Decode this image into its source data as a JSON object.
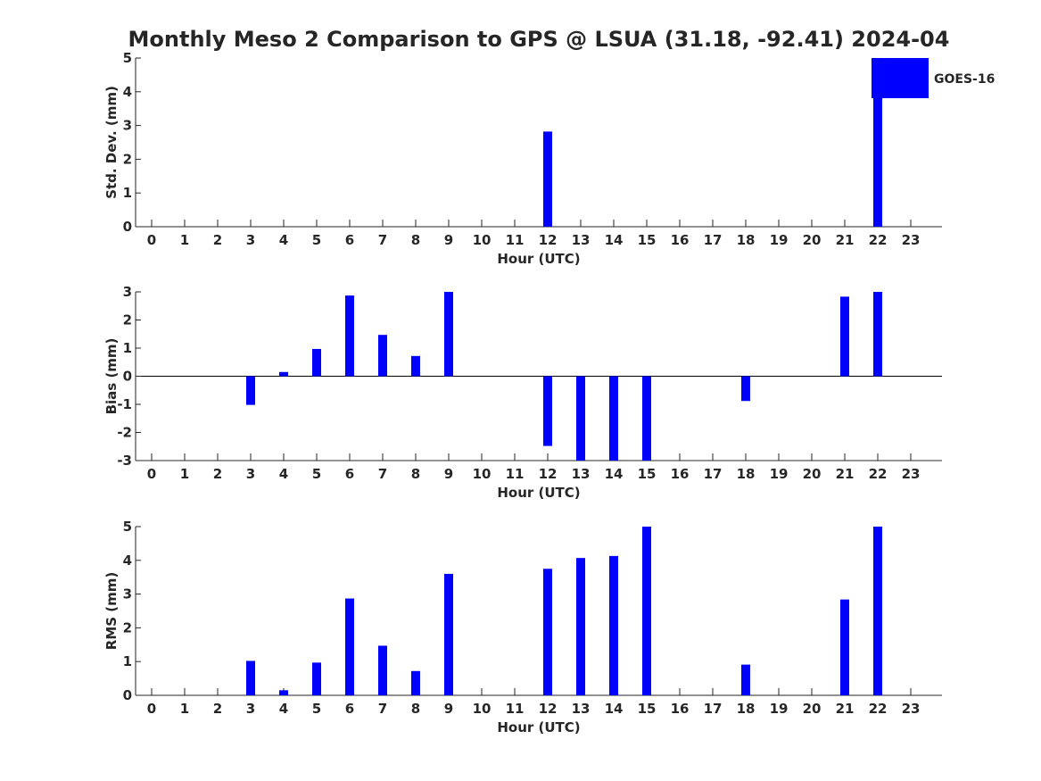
{
  "title": "Monthly Meso 2 Comparison to GPS @ LSUA (31.18, -92.41) 2024-04",
  "colors": {
    "bar": "#0000ff",
    "axis": "#262626",
    "background": "#ffffff"
  },
  "legend": {
    "label": "GOES-16",
    "position": "top-right"
  },
  "chart_data": [
    {
      "type": "bar",
      "xlabel": "Hour (UTC)",
      "ylabel": "Std. Dev. (mm)",
      "ylim": [
        0,
        5
      ],
      "yticks": [
        "0",
        "1",
        "2",
        "3",
        "4",
        "5"
      ],
      "categories": [
        "0",
        "1",
        "2",
        "3",
        "4",
        "5",
        "6",
        "7",
        "8",
        "9",
        "10",
        "11",
        "12",
        "13",
        "14",
        "15",
        "16",
        "17",
        "18",
        "19",
        "20",
        "21",
        "22",
        "23"
      ],
      "values": [
        null,
        null,
        null,
        null,
        null,
        null,
        null,
        null,
        null,
        null,
        null,
        null,
        2.82,
        null,
        null,
        null,
        null,
        null,
        null,
        null,
        null,
        null,
        5.0,
        null
      ]
    },
    {
      "type": "bar",
      "xlabel": "Hour (UTC)",
      "ylabel": "Bias (mm)",
      "ylim": [
        -3,
        3
      ],
      "yticks": [
        "-3",
        "-2",
        "-1",
        "0",
        "1",
        "2",
        "3"
      ],
      "categories": [
        "0",
        "1",
        "2",
        "3",
        "4",
        "5",
        "6",
        "7",
        "8",
        "9",
        "10",
        "11",
        "12",
        "13",
        "14",
        "15",
        "16",
        "17",
        "18",
        "19",
        "20",
        "21",
        "22",
        "23"
      ],
      "values": [
        null,
        null,
        null,
        -1.02,
        0.15,
        0.97,
        2.87,
        1.47,
        0.72,
        3.0,
        null,
        null,
        -2.48,
        -3.0,
        -3.0,
        -3.0,
        null,
        null,
        -0.88,
        null,
        null,
        2.83,
        3.0,
        null
      ]
    },
    {
      "type": "bar",
      "xlabel": "Hour (UTC)",
      "ylabel": "RMS (mm)",
      "ylim": [
        0,
        5
      ],
      "yticks": [
        "0",
        "1",
        "2",
        "3",
        "4",
        "5"
      ],
      "categories": [
        "0",
        "1",
        "2",
        "3",
        "4",
        "5",
        "6",
        "7",
        "8",
        "9",
        "10",
        "11",
        "12",
        "13",
        "14",
        "15",
        "16",
        "17",
        "18",
        "19",
        "20",
        "21",
        "22",
        "23"
      ],
      "values": [
        null,
        null,
        null,
        1.02,
        0.15,
        0.97,
        2.87,
        1.47,
        0.72,
        3.6,
        null,
        null,
        3.75,
        4.07,
        4.13,
        5.0,
        null,
        null,
        0.91,
        null,
        null,
        2.84,
        5.0,
        null
      ]
    }
  ]
}
